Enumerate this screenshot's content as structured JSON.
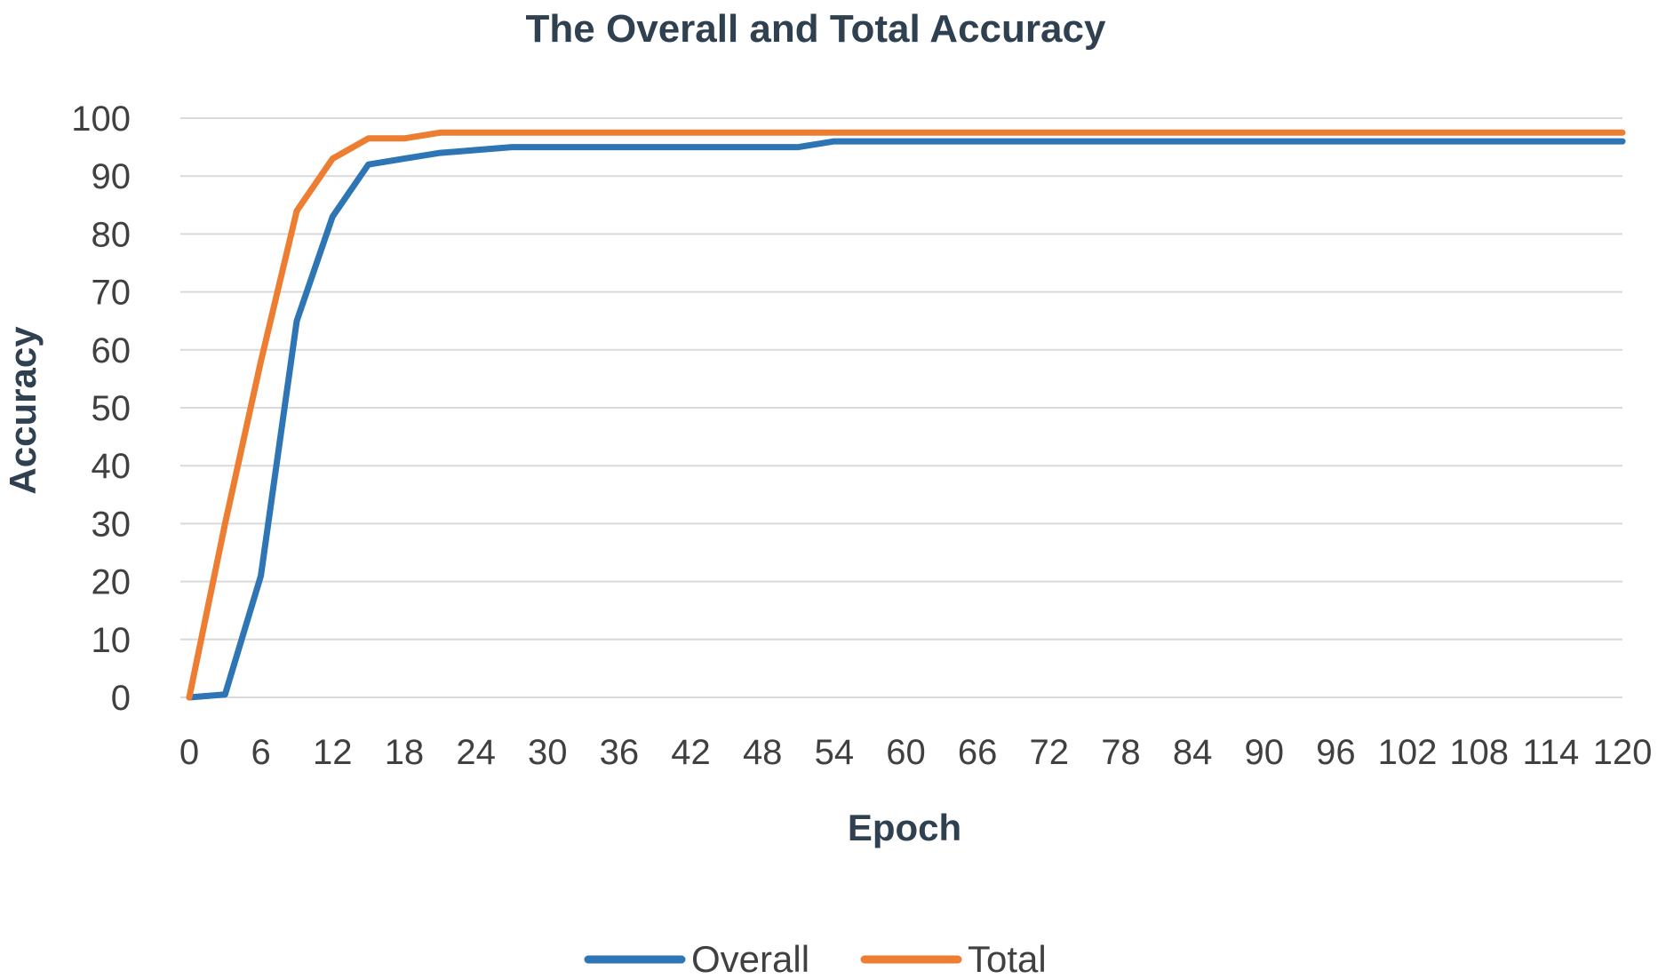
{
  "chart_data": {
    "type": "line",
    "title": "The Overall and Total Accuracy",
    "xlabel": "Epoch",
    "ylabel": "Accuracy",
    "xlim": [
      0,
      120
    ],
    "ylim": [
      0,
      100
    ],
    "x_ticks": [
      "0",
      "6",
      "12",
      "18",
      "24",
      "30",
      "36",
      "42",
      "48",
      "54",
      "60",
      "66",
      "72",
      "78",
      "84",
      "90",
      "96",
      "102",
      "108",
      "114",
      "120"
    ],
    "y_ticks": [
      "0",
      "10",
      "20",
      "30",
      "40",
      "50",
      "60",
      "70",
      "80",
      "90",
      "100"
    ],
    "grid": true,
    "legend_position": "bottom",
    "x": [
      0,
      3,
      6,
      9,
      12,
      15,
      18,
      21,
      24,
      27,
      30,
      33,
      36,
      39,
      42,
      45,
      48,
      51,
      54,
      57,
      60,
      63,
      66,
      69,
      72,
      75,
      78,
      81,
      84,
      87,
      90,
      93,
      96,
      99,
      102,
      105,
      108,
      111,
      114,
      117,
      120
    ],
    "series": [
      {
        "name": "Overall",
        "color": "#2e75b6",
        "values": [
          0,
          0.5,
          21,
          65,
          83,
          92,
          93,
          94,
          94.5,
          95,
          95,
          95,
          95,
          95,
          95,
          95,
          95,
          95,
          96,
          96,
          96,
          96,
          96,
          96,
          96,
          96,
          96,
          96,
          96,
          96,
          96,
          96,
          96,
          96,
          96,
          96,
          96,
          96,
          96,
          96,
          96
        ]
      },
      {
        "name": "Total",
        "color": "#ed7d31",
        "values": [
          0,
          30,
          58,
          84,
          93,
          96.5,
          96.5,
          97.5,
          97.5,
          97.5,
          97.5,
          97.5,
          97.5,
          97.5,
          97.5,
          97.5,
          97.5,
          97.5,
          97.5,
          97.5,
          97.5,
          97.5,
          97.5,
          97.5,
          97.5,
          97.5,
          97.5,
          97.5,
          97.5,
          97.5,
          97.5,
          97.5,
          97.5,
          97.5,
          97.5,
          97.5,
          97.5,
          97.5,
          97.5,
          97.5,
          97.5
        ]
      }
    ]
  }
}
